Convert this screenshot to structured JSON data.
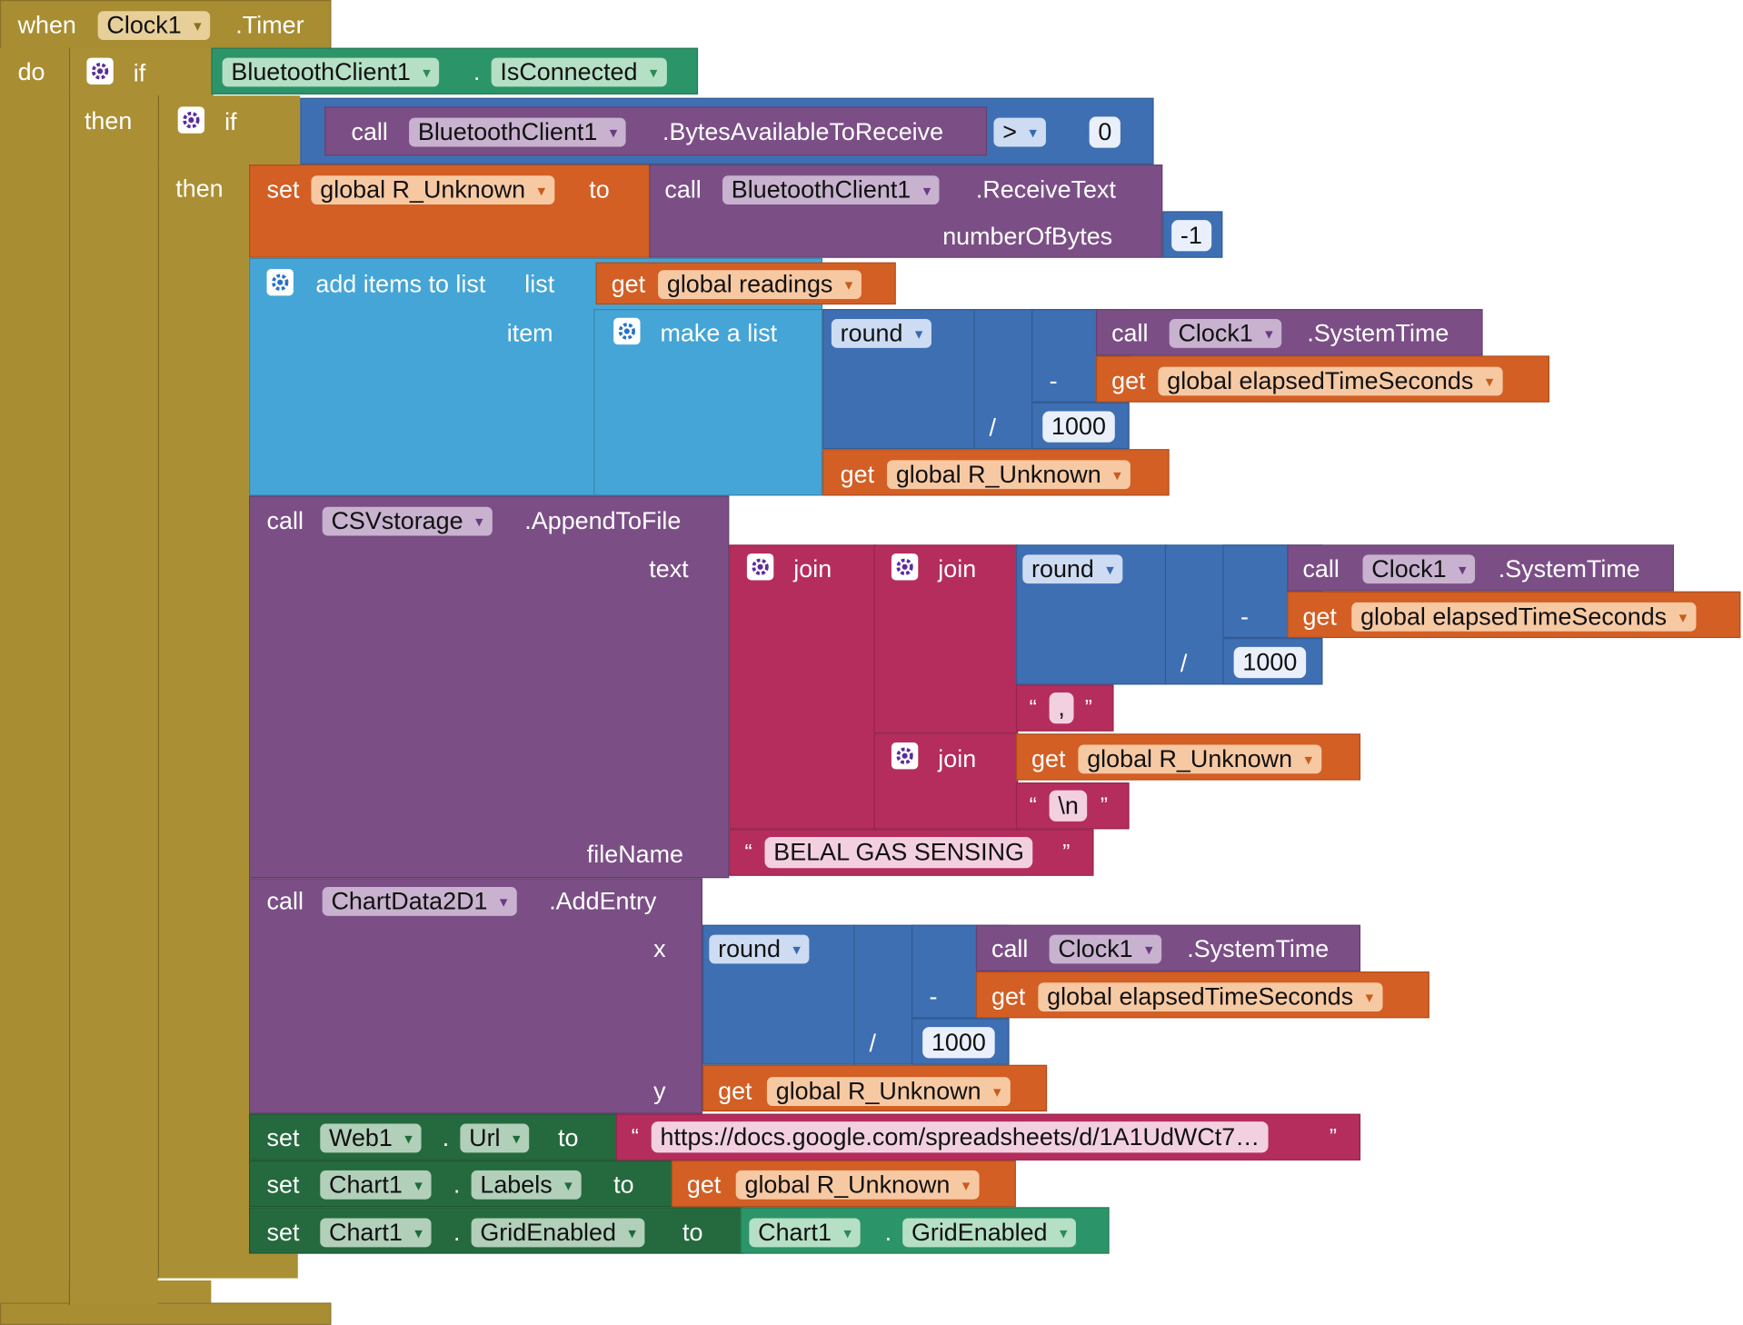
{
  "event": {
    "when": "when",
    "component": "Clock1",
    "event": ".Timer",
    "do": "do"
  },
  "outer_if": {
    "if": "if",
    "then": "then",
    "cond_component": "BluetoothClient1",
    "dot": ".",
    "cond_property": "IsConnected"
  },
  "inner_if": {
    "if": "if",
    "then": "then",
    "call": "call",
    "component": "BluetoothClient1",
    "method": ".BytesAvailableToReceive",
    "op": ">",
    "value": "0"
  },
  "set_unknown": {
    "set": "set",
    "var": "global R_Unknown",
    "to": "to",
    "call": "call",
    "component": "BluetoothClient1",
    "method": ".ReceiveText",
    "param": "numberOfBytes",
    "value": "-1"
  },
  "add_items": {
    "label": "add items to list",
    "list_label": "list",
    "get": "get",
    "list_var": "global readings",
    "item_label": "item",
    "make_list": "make a list",
    "round": "round",
    "call": "call",
    "clock": "Clock1",
    "system_time": ".SystemTime",
    "minus": "-",
    "elapsed_var": "global elapsedTimeSeconds",
    "divide": "/",
    "divisor": "1000",
    "unknown_var": "global R_Unknown"
  },
  "append": {
    "call": "call",
    "component": "CSVstorage",
    "method": ".AppendToFile",
    "text_label": "text",
    "join": "join",
    "round": "round",
    "clock": "Clock1",
    "system_time": ".SystemTime",
    "minus": "-",
    "get": "get",
    "elapsed_var": "global elapsedTimeSeconds",
    "divide": "/",
    "divisor": "1000",
    "comma": ",",
    "unknown_var": "global R_Unknown",
    "newline": "\\n",
    "filename_label": "fileName",
    "filename": "BELAL GAS SENSING",
    "open_quote": "“",
    "close_quote": "”"
  },
  "add_entry": {
    "call": "call",
    "component": "ChartData2D1",
    "method": ".AddEntry",
    "x_label": "x",
    "round": "round",
    "clock": "Clock1",
    "system_time": ".SystemTime",
    "minus": "-",
    "get": "get",
    "elapsed_var": "global elapsedTimeSeconds",
    "divide": "/",
    "divisor": "1000",
    "y_label": "y",
    "unknown_var": "global R_Unknown"
  },
  "set_web": {
    "set": "set",
    "component": "Web1",
    "dot": ".",
    "property": "Url",
    "to": "to",
    "url": "https://docs.google.com/spreadsheets/d/1A1UdWCt7…"
  },
  "set_labels": {
    "set": "set",
    "component": "Chart1",
    "dot": ".",
    "property": "Labels",
    "to": "to",
    "get": "get",
    "var": "global R_Unknown"
  },
  "set_grid": {
    "set": "set",
    "component": "Chart1",
    "dot": ".",
    "property": "GridEnabled",
    "to": "to",
    "src_component": "Chart1",
    "src_property": "GridEnabled"
  },
  "colors": {
    "event_block": "#a88d32",
    "procedure_block": "#7b4f86",
    "variable_block": "#d35f24",
    "list_block": "#45a5d6",
    "math_block": "#3e6fb3",
    "text_block": "#b52d5d",
    "component_getter": "#2c9469",
    "component_setter": "#256a3e"
  }
}
